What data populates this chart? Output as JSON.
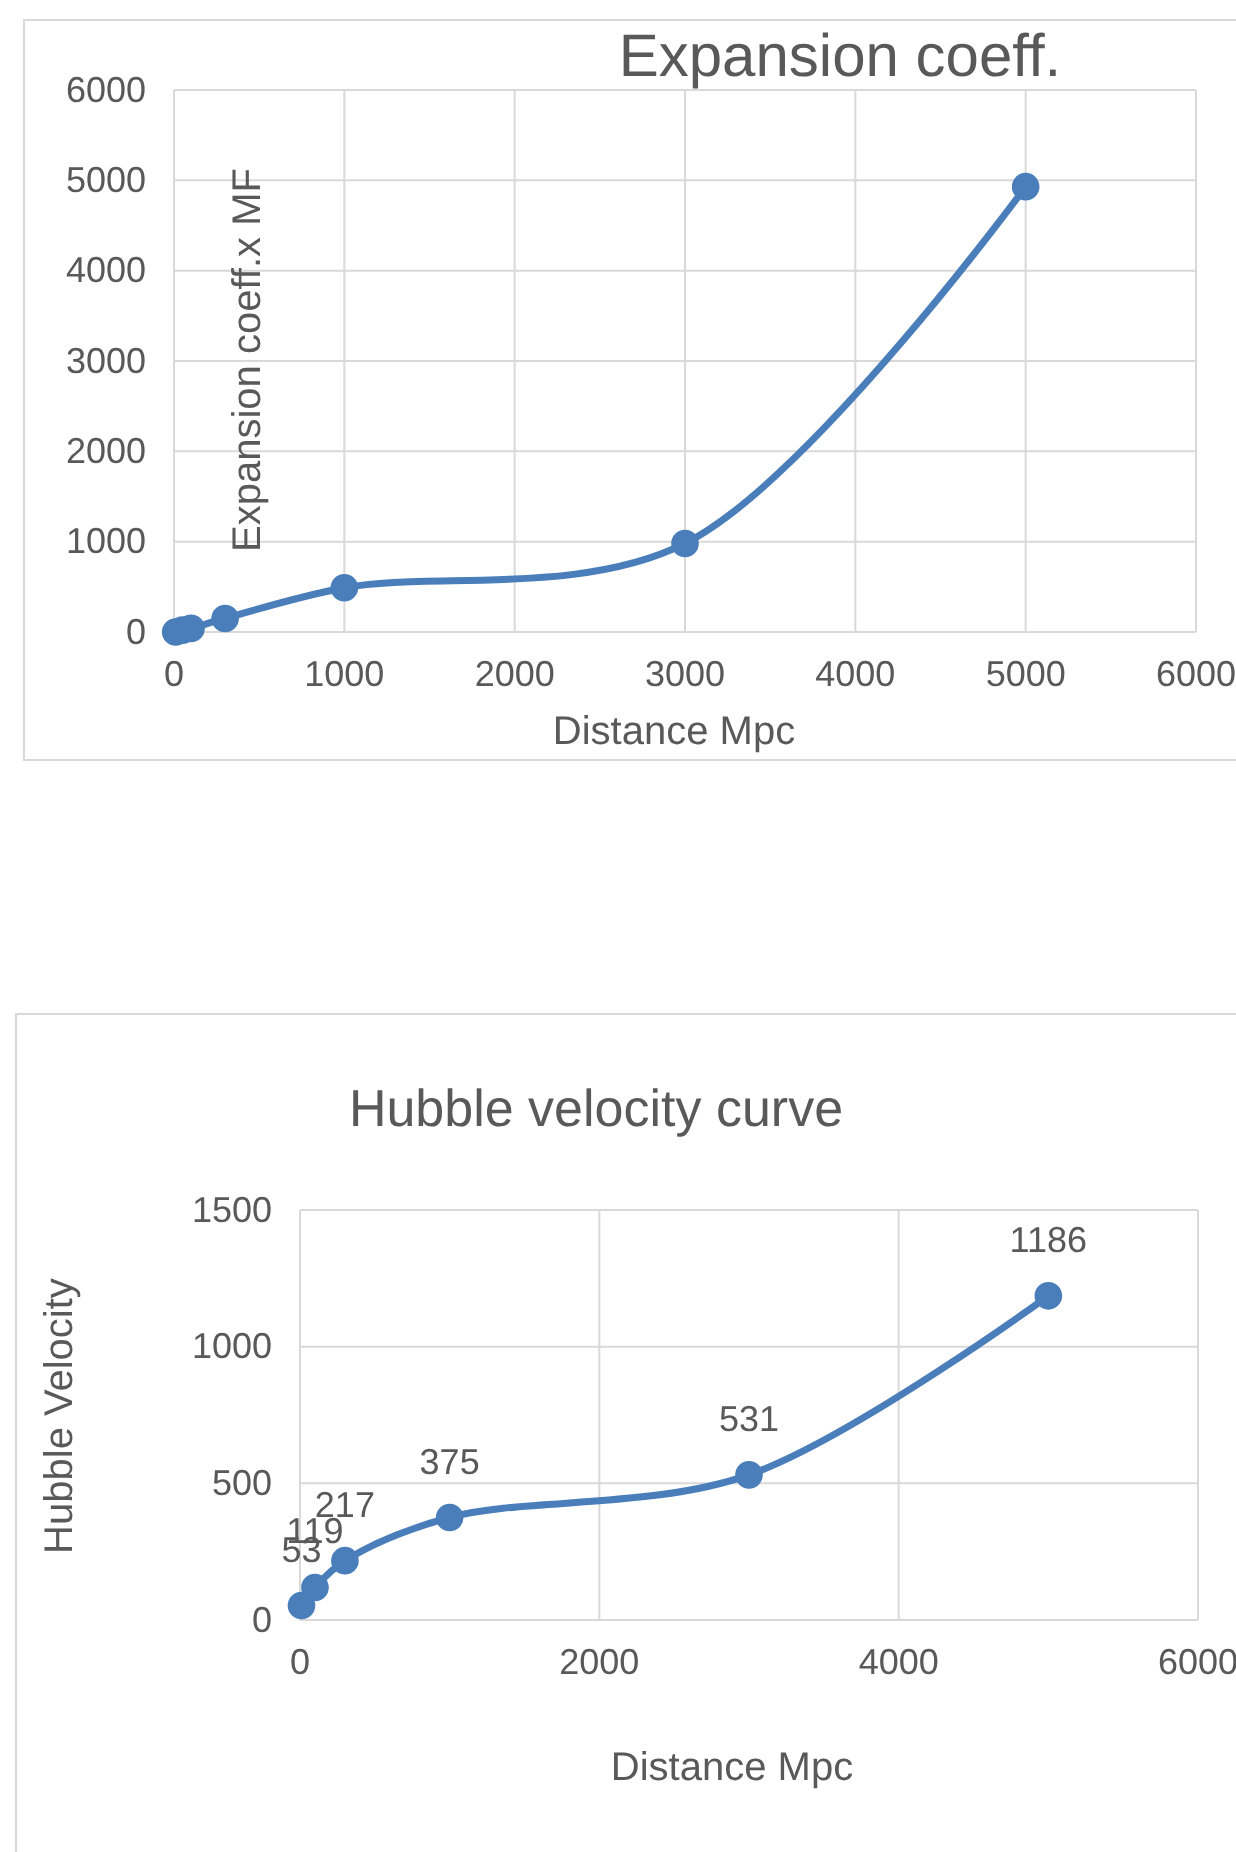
{
  "chart_data": [
    {
      "type": "line",
      "title": "Expansion coeff.",
      "xlabel": "Distance Mpc",
      "ylabel": "Expansion coeff.x MF",
      "x": [
        10,
        50,
        100,
        300,
        1000,
        3000,
        5000
      ],
      "series": [
        {
          "color": "#4a7ebb",
          "values": [
            0,
            20,
            40,
            150,
            490,
            980,
            4930
          ]
        }
      ],
      "xlim": [
        0,
        6000
      ],
      "xticks": [
        0,
        1000,
        2000,
        3000,
        4000,
        5000,
        6000
      ],
      "ylim": [
        0,
        6000
      ],
      "yticks": [
        0,
        1000,
        2000,
        3000,
        4000,
        5000,
        6000
      ],
      "grid": true,
      "marker": "circle"
    },
    {
      "type": "line",
      "title": "Hubble velocity curve",
      "xlabel": "Distance Mpc",
      "ylabel": "Hubble Velocity",
      "x": [
        10,
        100,
        300,
        1000,
        3000,
        5000
      ],
      "series": [
        {
          "color": "#4a7ebb",
          "values": [
            53,
            119,
            217,
            375,
            531,
            1186
          ]
        }
      ],
      "xlim": [
        0,
        6000
      ],
      "xticks": [
        0,
        2000,
        4000,
        6000
      ],
      "ylim": [
        0,
        1500
      ],
      "yticks": [
        0,
        500,
        1000,
        1500
      ],
      "grid": true,
      "marker": "circle",
      "data_labels": true
    }
  ]
}
